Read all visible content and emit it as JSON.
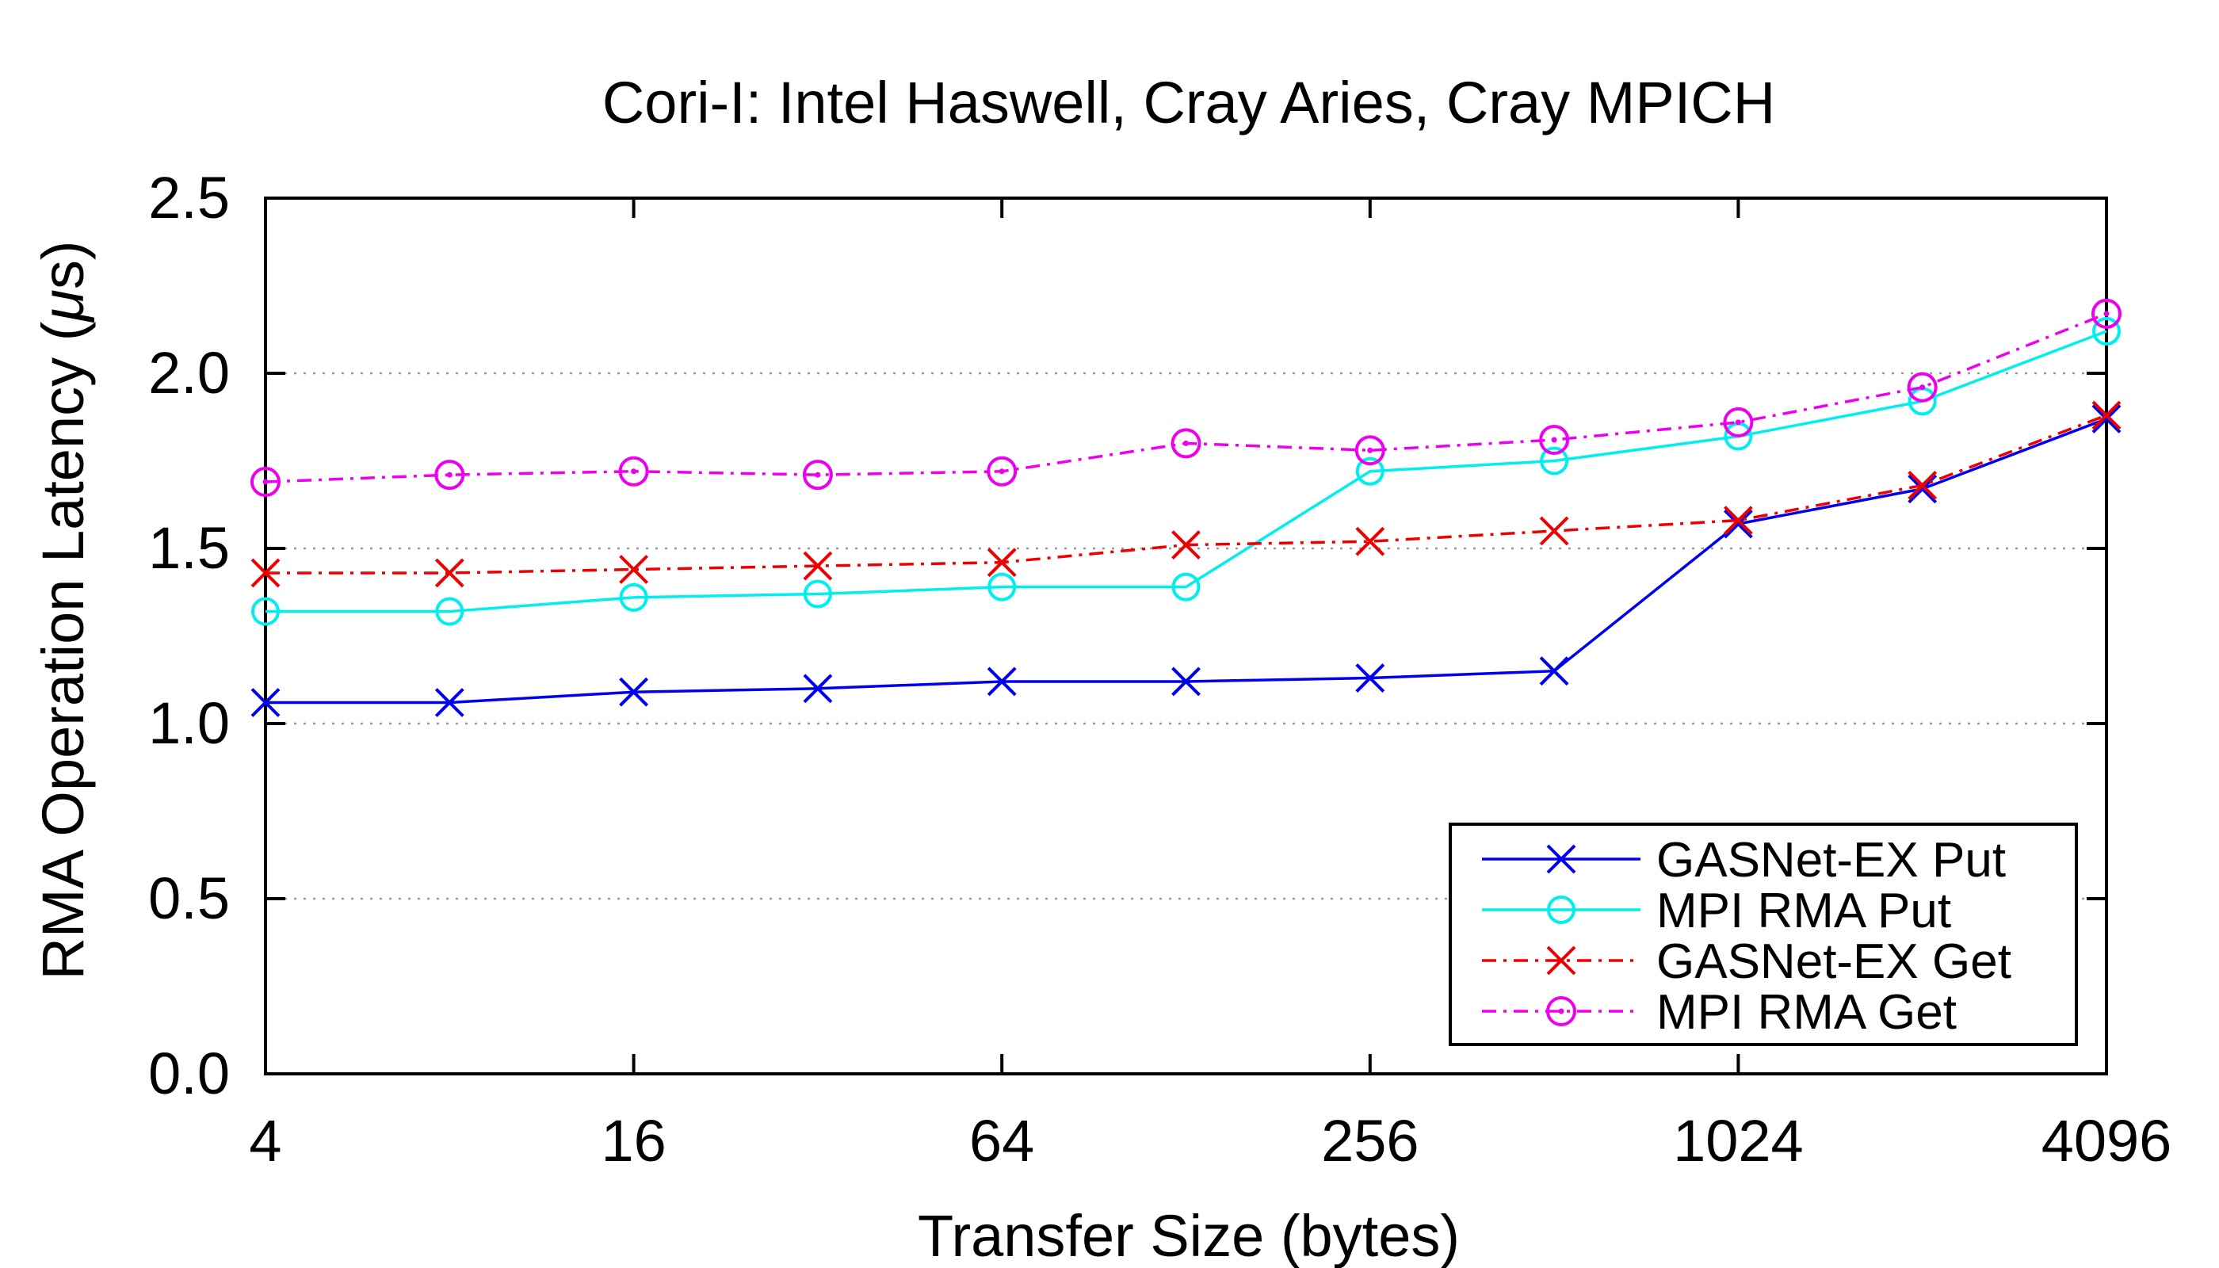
{
  "chart_data": {
    "type": "line",
    "title": "Cori-I: Intel Haswell, Cray Aries, Cray MPICH",
    "xlabel": "Transfer Size (bytes)",
    "ylabel_prefix": "RMA Operation Latency (",
    "ylabel_mu": "μ",
    "ylabel_suffix": "s)",
    "x_scale": "log2",
    "x": [
      4,
      8,
      16,
      32,
      64,
      128,
      256,
      512,
      1024,
      2048,
      4096
    ],
    "x_ticks": [
      4,
      16,
      64,
      256,
      1024,
      4096
    ],
    "x_tick_labels": [
      "4",
      "16",
      "64",
      "256",
      "1024",
      "4096"
    ],
    "ylim": [
      0,
      2.5
    ],
    "y_ticks": [
      0.0,
      0.5,
      1.0,
      1.5,
      2.0,
      2.5
    ],
    "y_tick_labels": [
      "0.0",
      "0.5",
      "1.0",
      "1.5",
      "2.0",
      "2.5"
    ],
    "grid": "horizontal dotted",
    "legend_position": "bottom-right",
    "series": [
      {
        "name": "GASNet-EX Put",
        "color": "#0000ee",
        "marker": "x",
        "dash": "solid",
        "values": [
          1.06,
          1.06,
          1.09,
          1.1,
          1.12,
          1.12,
          1.13,
          1.15,
          1.57,
          1.67,
          1.87
        ]
      },
      {
        "name": "MPI RMA Put",
        "color": "#00eeee",
        "marker": "circle",
        "dash": "solid",
        "values": [
          1.32,
          1.32,
          1.36,
          1.37,
          1.39,
          1.39,
          1.72,
          1.75,
          1.82,
          1.92,
          2.12
        ]
      },
      {
        "name": "GASNet-EX Get",
        "color": "#ee0000",
        "marker": "x",
        "dash": "dashdot",
        "values": [
          1.43,
          1.43,
          1.44,
          1.45,
          1.46,
          1.51,
          1.52,
          1.55,
          1.58,
          1.68,
          1.88
        ]
      },
      {
        "name": "MPI RMA Get",
        "color": "#ee00ee",
        "marker": "circledot",
        "dash": "dashdot",
        "values": [
          1.69,
          1.71,
          1.72,
          1.71,
          1.72,
          1.8,
          1.78,
          1.81,
          1.86,
          1.96,
          2.17
        ]
      }
    ]
  }
}
